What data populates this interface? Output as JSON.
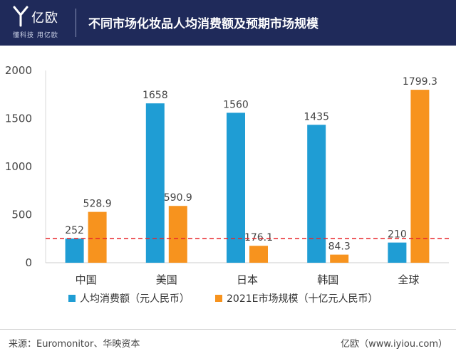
{
  "header": {
    "logo_text": "亿欧",
    "logo_tagline": "懂科技 用亿欧",
    "title": "不同市场化妆品人均消费额及预期市场规模"
  },
  "footer": {
    "source": "来源：Euromonitor、华映资本",
    "credit": "亿欧（www.iyiou.com）"
  },
  "chart_data": {
    "type": "bar",
    "categories": [
      "中国",
      "美国",
      "日本",
      "韩国",
      "全球"
    ],
    "series": [
      {
        "name": "人均消费额（元人民币）",
        "color": "#1f9dd4",
        "values": [
          252,
          1658,
          1560,
          1435,
          210
        ],
        "labels": [
          "252",
          "1658",
          "1560",
          "1435",
          "210"
        ]
      },
      {
        "name": "2021E市场规模（十亿元人民币）",
        "color": "#f7931e",
        "values": [
          528.9,
          590.9,
          176.1,
          84.3,
          1799.3
        ],
        "labels": [
          "528.9",
          "590.9",
          "176.1",
          "84.3",
          "1799.3"
        ]
      }
    ],
    "ylim": [
      0,
      2000
    ],
    "yticks": [
      0,
      500,
      1000,
      1500,
      2000
    ],
    "reference_line": {
      "value": 252,
      "color": "#e8262b",
      "style": "dashed"
    },
    "legend_position": "bottom",
    "grid": false
  }
}
